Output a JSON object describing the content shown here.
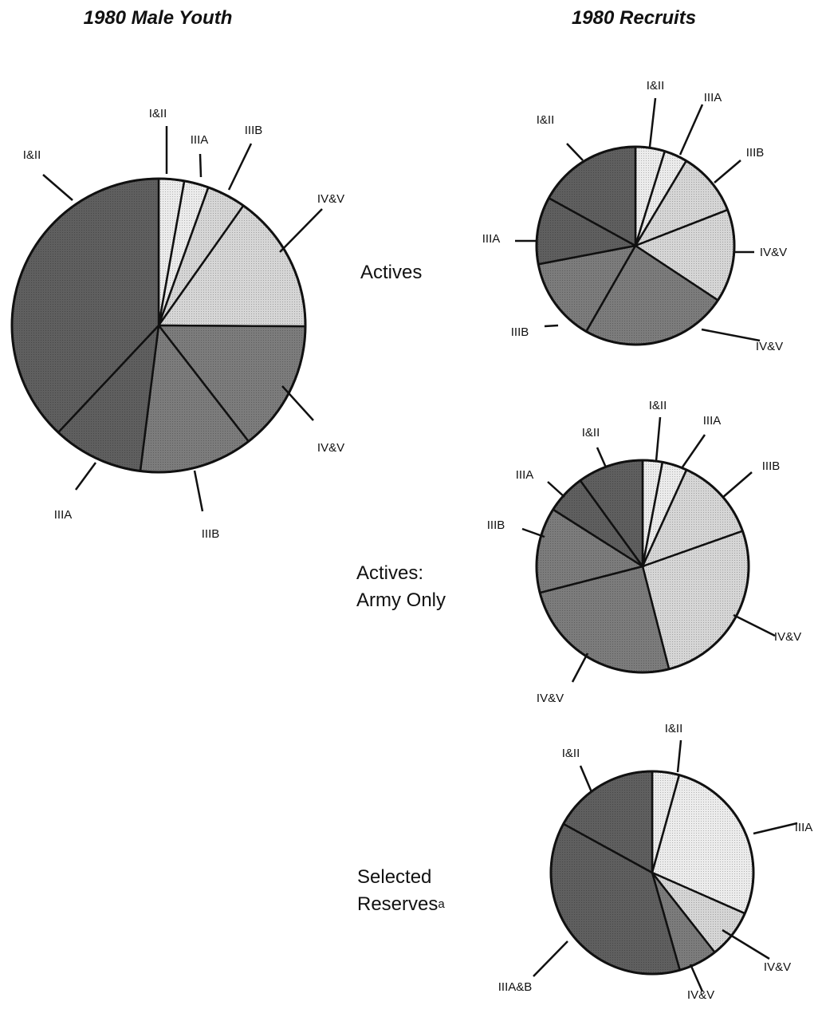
{
  "column_titles": {
    "youth": "1980 Male Youth",
    "recruits": "1980 Recruits"
  },
  "row_labels": {
    "actives": "Actives",
    "army_line1": "Actives:",
    "army_line2": "Army Only",
    "reserves_line1": "Selected",
    "reserves_line2": "Reserves",
    "reserves_footnote": "a"
  },
  "palette": {
    "dark_grey": "#5f5f5f",
    "grey": "#7c7c7c",
    "light_grey": "#d6d6d6",
    "lightest_grey": "#ececec",
    "stroke": "#111111"
  },
  "chart_data": [
    {
      "id": "male-youth",
      "type": "pie",
      "title": "1980 Male Youth",
      "slices": [
        {
          "category": "I&II",
          "value": 2.8,
          "fill": "lightest_grey"
        },
        {
          "category": "IIIA",
          "value": 2.7,
          "fill": "lightest_grey"
        },
        {
          "category": "IIIB",
          "value": 4.3,
          "fill": "light_grey"
        },
        {
          "category": "IV&V",
          "value": 15.3,
          "fill": "light_grey"
        },
        {
          "category": "IV&V",
          "value": 14.4,
          "fill": "grey"
        },
        {
          "category": "IIIB",
          "value": 12.5,
          "fill": "grey"
        },
        {
          "category": "IIIA",
          "value": 10.0,
          "fill": "dark_grey"
        },
        {
          "category": "I&II",
          "value": 38.0,
          "fill": "dark_grey"
        }
      ]
    },
    {
      "id": "recruits-actives",
      "type": "pie",
      "title": "Actives",
      "slices": [
        {
          "category": "I&II",
          "value": 4.8,
          "fill": "lightest_grey"
        },
        {
          "category": "IIIA",
          "value": 3.8,
          "fill": "lightest_grey"
        },
        {
          "category": "IIIB",
          "value": 10.5,
          "fill": "light_grey"
        },
        {
          "category": "IV&V",
          "value": 15.2,
          "fill": "light_grey"
        },
        {
          "category": "IV&V",
          "value": 24.0,
          "fill": "grey"
        },
        {
          "category": "IIIB",
          "value": 13.7,
          "fill": "grey"
        },
        {
          "category": "IIIA",
          "value": 11.0,
          "fill": "dark_grey"
        },
        {
          "category": "I&II",
          "value": 17.0,
          "fill": "dark_grey"
        }
      ]
    },
    {
      "id": "recruits-army",
      "type": "pie",
      "title": "Actives: Army Only",
      "slices": [
        {
          "category": "I&II",
          "value": 3.0,
          "fill": "lightest_grey"
        },
        {
          "category": "IIIA",
          "value": 3.8,
          "fill": "lightest_grey"
        },
        {
          "category": "IIIB",
          "value": 12.8,
          "fill": "light_grey"
        },
        {
          "category": "IV&V",
          "value": 26.4,
          "fill": "light_grey"
        },
        {
          "category": "IV&V",
          "value": 25.0,
          "fill": "grey"
        },
        {
          "category": "IIIB",
          "value": 13.0,
          "fill": "grey"
        },
        {
          "category": "IIIA",
          "value": 6.0,
          "fill": "dark_grey"
        },
        {
          "category": "I&II",
          "value": 10.0,
          "fill": "dark_grey"
        }
      ]
    },
    {
      "id": "recruits-reserves",
      "type": "pie",
      "title": "Selected Reserves",
      "slices": [
        {
          "category": "I&II",
          "value": 4.3,
          "fill": "lightest_grey"
        },
        {
          "category": "IIIA",
          "value": 27.3,
          "fill": "lightest_grey"
        },
        {
          "category": "IV&V",
          "value": 7.8,
          "fill": "light_grey"
        },
        {
          "category": "IV&V",
          "value": 6.2,
          "fill": "grey"
        },
        {
          "category": "IIIA&B",
          "value": 37.4,
          "fill": "dark_grey"
        },
        {
          "category": "I&II",
          "value": 17.0,
          "fill": "dark_grey"
        }
      ]
    }
  ]
}
